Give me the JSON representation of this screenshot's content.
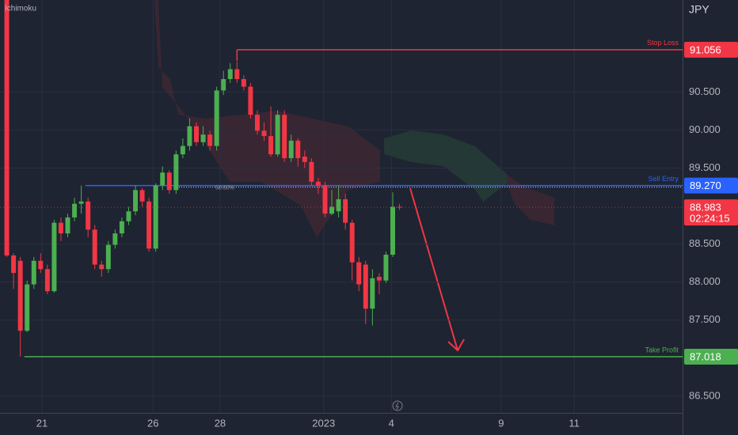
{
  "chart_data": {
    "type": "candlestick",
    "indicator": "Ichimoku",
    "currency": "JPY",
    "up_color": "#4caf50",
    "down_color": "#f23645",
    "x": [
      0,
      1,
      2,
      3,
      4,
      5,
      6,
      7,
      8,
      9,
      10,
      11,
      12,
      13,
      14,
      15,
      16,
      17,
      18,
      19,
      20,
      21,
      22,
      23,
      24,
      25,
      26,
      27,
      28,
      29,
      30,
      31,
      32,
      33,
      34,
      35,
      36,
      37,
      38,
      39,
      40,
      41,
      42,
      43,
      44,
      45,
      46,
      47,
      48,
      49,
      50,
      51,
      52,
      53,
      54,
      55,
      56,
      57,
      58
    ],
    "open": [
      91.8,
      88.35,
      88.28,
      87.36,
      87.97,
      88.28,
      88.17,
      87.88,
      88.78,
      88.64,
      88.85,
      89.03,
      89.06,
      88.69,
      88.23,
      88.17,
      88.49,
      88.64,
      88.8,
      88.93,
      89.21,
      89.06,
      88.44,
      89.27,
      89.44,
      89.21,
      89.68,
      89.79,
      90.05,
      89.84,
      89.94,
      89.79,
      90.52,
      90.67,
      90.8,
      90.67,
      90.57,
      90.2,
      89.99,
      89.92,
      89.68,
      90.2,
      89.63,
      89.86,
      89.65,
      89.58,
      89.32,
      89.27,
      88.9,
      88.93,
      89.09,
      88.78,
      88.26,
      88.23,
      87.65,
      88.07,
      88.02,
      88.36,
      88.99
    ],
    "high": [
      91.85,
      88.38,
      88.33,
      88.02,
      88.33,
      88.38,
      88.23,
      88.82,
      88.85,
      88.9,
      89.11,
      89.27,
      89.11,
      88.75,
      88.28,
      88.54,
      88.69,
      88.85,
      88.99,
      89.27,
      89.24,
      89.11,
      89.3,
      89.52,
      89.47,
      89.73,
      89.89,
      90.15,
      90.1,
      90.05,
      89.99,
      90.57,
      90.78,
      90.88,
      90.9,
      90.72,
      90.62,
      90.26,
      90.1,
      90.31,
      90.26,
      90.26,
      89.94,
      89.89,
      89.73,
      89.63,
      89.37,
      89.32,
      89.21,
      89.27,
      89.16,
      88.82,
      88.33,
      88.28,
      88.17,
      88.12,
      88.4,
      89.18,
      89.03
    ],
    "low": [
      88.33,
      87.91,
      87.02,
      87.34,
      87.91,
      88.12,
      87.84,
      87.86,
      88.54,
      88.59,
      88.8,
      88.9,
      88.59,
      88.17,
      88.07,
      88.12,
      88.44,
      88.59,
      88.75,
      88.88,
      88.99,
      88.4,
      88.4,
      89.21,
      89.16,
      89.16,
      89.63,
      89.73,
      89.79,
      89.79,
      89.73,
      89.73,
      90.46,
      90.62,
      90.62,
      90.52,
      90.15,
      89.94,
      89.86,
      89.65,
      89.65,
      89.58,
      89.58,
      89.52,
      89.5,
      89.27,
      89.16,
      88.85,
      88.88,
      88.85,
      88.69,
      88.02,
      87.88,
      87.45,
      87.43,
      87.84,
      87.99,
      88.33,
      88.95
    ],
    "close": [
      88.35,
      88.12,
      87.36,
      87.97,
      88.28,
      88.17,
      87.88,
      88.78,
      88.64,
      88.85,
      89.03,
      89.06,
      88.69,
      88.23,
      88.17,
      88.49,
      88.64,
      88.8,
      88.93,
      89.21,
      89.06,
      88.44,
      89.27,
      89.44,
      89.21,
      89.68,
      89.79,
      90.05,
      89.84,
      89.94,
      89.79,
      90.52,
      90.67,
      90.8,
      90.67,
      90.57,
      90.2,
      89.99,
      89.92,
      89.68,
      90.2,
      89.63,
      89.86,
      89.63,
      89.58,
      89.32,
      89.27,
      88.9,
      88.99,
      89.09,
      88.78,
      88.26,
      87.97,
      87.65,
      88.05,
      88.02,
      88.36,
      88.99,
      88.983
    ],
    "xlim": [
      -1,
      99.8
    ],
    "xticks": [
      {
        "value": 5.2,
        "label": "21"
      },
      {
        "value": 21.6,
        "label": "26"
      },
      {
        "value": 31.5,
        "label": "28"
      },
      {
        "value": 46.8,
        "label": "2023"
      },
      {
        "value": 56.8,
        "label": "4"
      },
      {
        "value": 73.0,
        "label": "9"
      },
      {
        "value": 83.8,
        "label": "11"
      }
    ],
    "ylim": [
      86.28,
      91.71
    ],
    "yticks": [
      {
        "value": 86.5,
        "label": "86.500"
      },
      {
        "value": 87.5,
        "label": "87.500"
      },
      {
        "value": 88.0,
        "label": "88.000"
      },
      {
        "value": 88.5,
        "label": "88.500"
      },
      {
        "value": 89.5,
        "label": "89.500"
      },
      {
        "value": 90.0,
        "label": "90.000"
      },
      {
        "value": 90.5,
        "label": "90.500"
      }
    ],
    "grid": true,
    "levels": [
      {
        "name": "Stop Loss",
        "value": 91.056,
        "value_label": "91.056",
        "color": "#f23645"
      },
      {
        "name": "Sell Entry",
        "value": 89.27,
        "value_label": "89.270",
        "color": "#2962ff"
      },
      {
        "name": "Take Profit",
        "value": 87.018,
        "value_label": "87.018",
        "color": "#4caf50"
      }
    ],
    "fib_label": "50.00%",
    "last_price": 88.983,
    "last_price_label": "88.983",
    "countdown": "02:24:15"
  }
}
